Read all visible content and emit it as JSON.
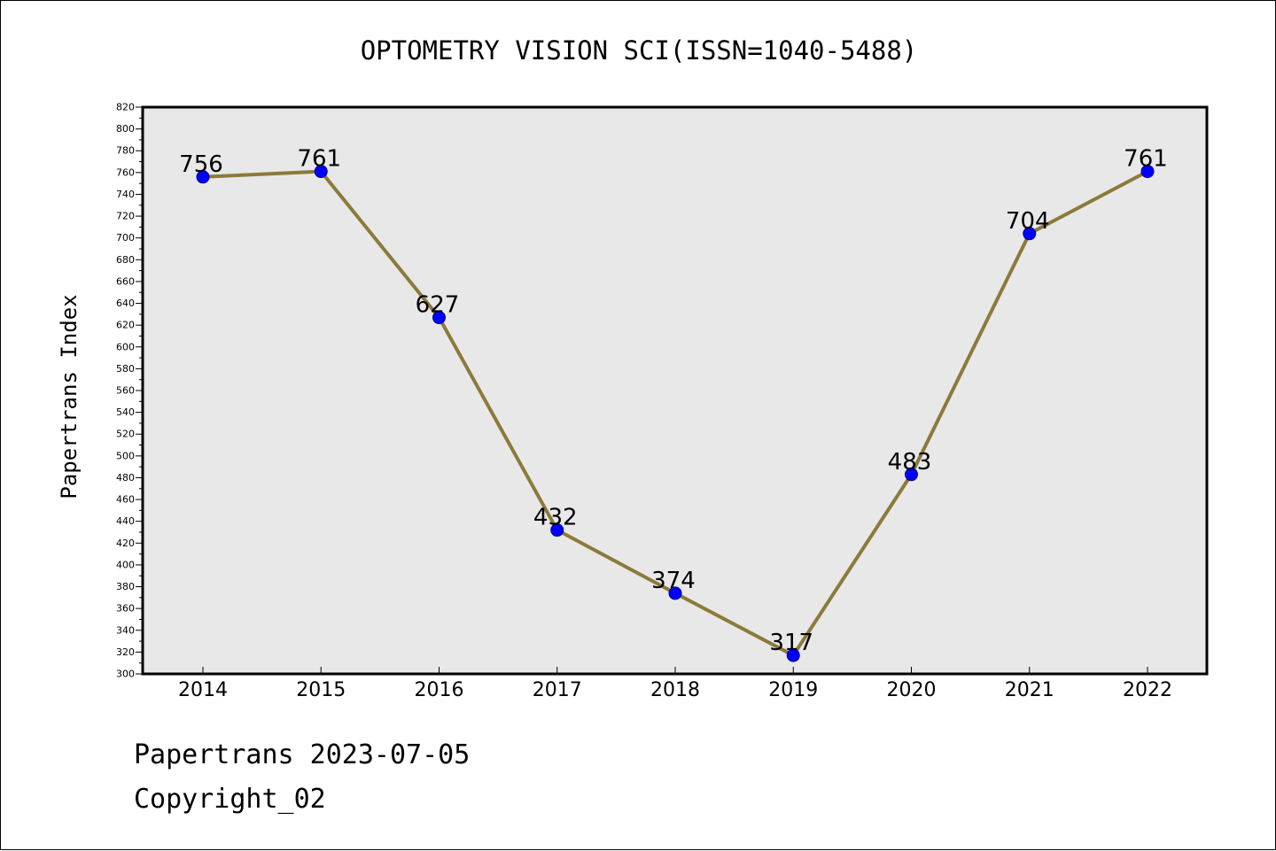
{
  "chart_data": {
    "type": "line",
    "title": "OPTOMETRY VISION SCI(ISSN=1040-5488)",
    "xlabel": "",
    "ylabel": "Papertrans Index",
    "categories": [
      "2014",
      "2015",
      "2016",
      "2017",
      "2018",
      "2019",
      "2020",
      "2021",
      "2022"
    ],
    "series": [
      {
        "values": [
          756,
          761,
          627,
          432,
          374,
          317,
          483,
          704,
          761
        ]
      }
    ],
    "ylim": [
      300,
      820
    ],
    "ytick_step": 20,
    "grid": false,
    "legend": "none",
    "colors": {
      "plot_background": "#e8e8e8",
      "line": "#8b7a3a",
      "marker_fill": "#0000ff",
      "marker_stroke": "#00008b"
    }
  },
  "footer": {
    "date_line": "Papertrans 2023-07-05",
    "copyright_line": "Copyright_02"
  }
}
